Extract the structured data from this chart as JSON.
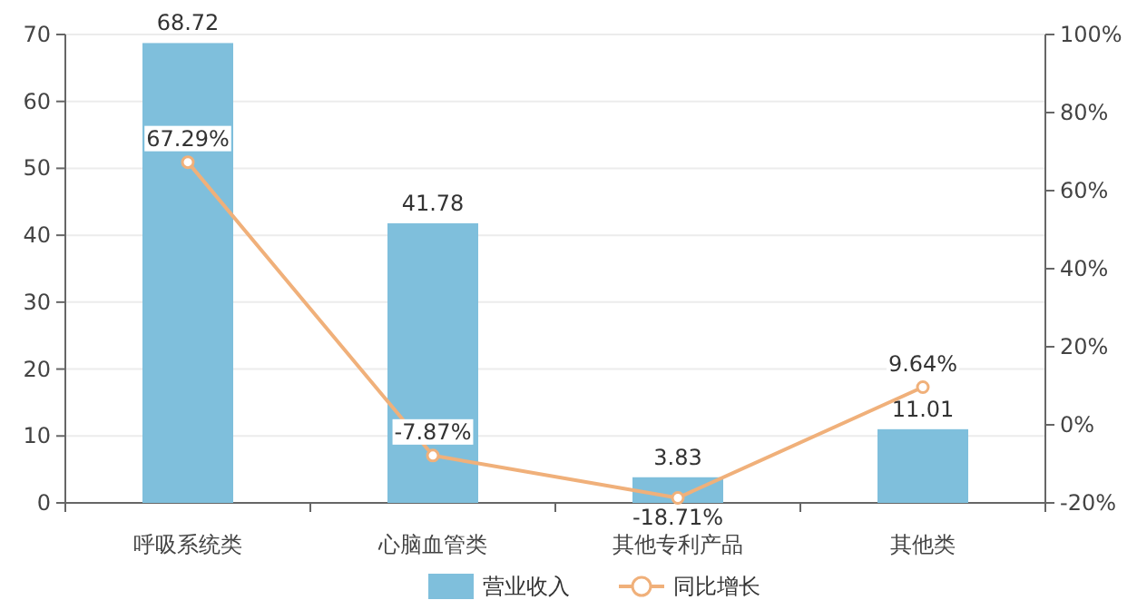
{
  "chart_data": {
    "type": "bar",
    "categories": [
      "呼吸系统类",
      "心脑血管类",
      "其他专利产品",
      "其他类"
    ],
    "series": [
      {
        "name": "营业收入",
        "type": "bar",
        "color": "#7fbfdc",
        "values": [
          68.72,
          41.78,
          3.83,
          11.01
        ]
      },
      {
        "name": "同比增长",
        "type": "line",
        "axis": "y2",
        "color": "#f0b07a",
        "marker": "circle",
        "values": [
          67.29,
          -7.87,
          -18.71,
          9.64
        ],
        "value_labels": [
          "67.29%",
          "-7.87%",
          "-18.71%",
          "9.64%"
        ]
      }
    ],
    "ylim": [
      0,
      70
    ],
    "yticks": [
      0,
      10,
      20,
      30,
      40,
      50,
      60,
      70
    ],
    "y2lim": [
      -20,
      100
    ],
    "y2ticks": [
      {
        "value": -20,
        "label": "-20%"
      },
      {
        "value": 0,
        "label": "0%"
      },
      {
        "value": 20,
        "label": "20%"
      },
      {
        "value": 40,
        "label": "40%"
      },
      {
        "value": 60,
        "label": "60%"
      },
      {
        "value": 80,
        "label": "80%"
      },
      {
        "value": 100,
        "label": "100%"
      }
    ],
    "data_labels": true,
    "grid": "y",
    "legend": "bottom"
  }
}
